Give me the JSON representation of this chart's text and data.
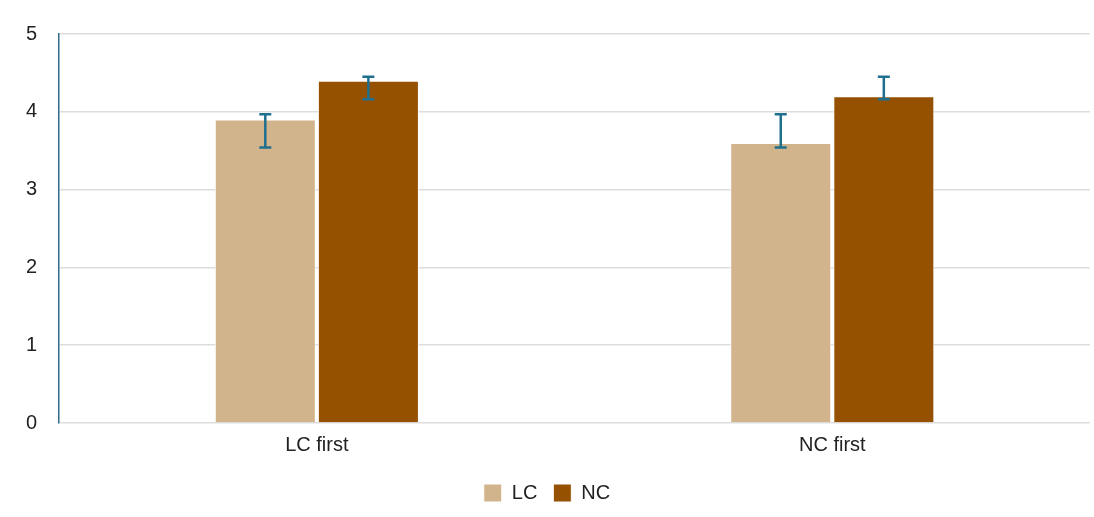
{
  "chart_data": {
    "type": "bar",
    "categories": [
      "LC first",
      "NC first"
    ],
    "series": [
      {
        "name": "LC",
        "color": "#d2b48c",
        "values": [
          3.9,
          3.6
        ],
        "errors": [
          [
            3.54,
            3.97
          ],
          [
            3.54,
            3.97
          ]
        ]
      },
      {
        "name": "NC",
        "color": "#955000",
        "values": [
          4.4,
          4.2
        ],
        "errors": [
          [
            4.16,
            4.45
          ],
          [
            4.16,
            4.45
          ]
        ]
      }
    ],
    "ylim": [
      0,
      5
    ],
    "yticks": [
      0,
      1,
      2,
      3,
      4,
      5
    ],
    "grid": "y",
    "legend": "bottom"
  }
}
